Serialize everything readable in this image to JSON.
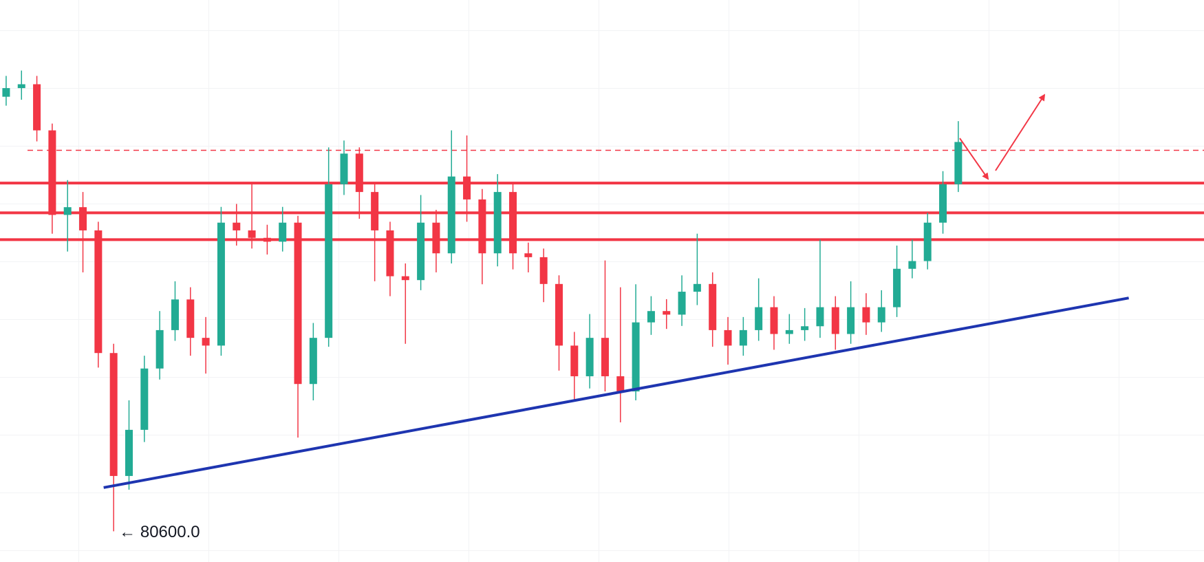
{
  "chart_data": {
    "type": "candlestick",
    "ylim": [
      79570,
      98450
    ],
    "colors": {
      "up": "#22ab94",
      "down": "#f23645"
    },
    "open": [
      95200,
      95490,
      95620,
      94070,
      91230,
      91490,
      90710,
      86590,
      82460,
      84010,
      86070,
      87360,
      88390,
      87100,
      86840,
      90970,
      90710,
      90460,
      90330,
      90970,
      85550,
      87100,
      92260,
      93290,
      92000,
      90710,
      89170,
      89040,
      90970,
      89940,
      92520,
      91750,
      89940,
      92000,
      89940,
      89810,
      88910,
      86840,
      85810,
      87100,
      85810,
      85300,
      87620,
      88000,
      87880,
      88650,
      88910,
      87360,
      86840,
      87360,
      88130,
      87230,
      87360,
      87490,
      88130,
      87230,
      88130,
      87620,
      88130,
      89420,
      89680,
      90970,
      92260
    ],
    "high": [
      95900,
      96080,
      95900,
      94300,
      92400,
      92000,
      91000,
      86900,
      85000,
      86500,
      88000,
      89000,
      88800,
      87800,
      91500,
      91600,
      92300,
      90900,
      91500,
      91200,
      87600,
      93500,
      93730,
      93500,
      92300,
      91000,
      89600,
      91900,
      91400,
      94070,
      93900,
      92100,
      92600,
      92300,
      90300,
      90100,
      89200,
      87300,
      87900,
      89700,
      88800,
      88900,
      88500,
      88400,
      89200,
      90600,
      89300,
      87800,
      87800,
      89100,
      88500,
      87900,
      88100,
      90400,
      88500,
      89000,
      88600,
      88700,
      90200,
      90400,
      91300,
      92700,
      94380
    ],
    "low": [
      94900,
      95100,
      93700,
      90600,
      90000,
      89300,
      86100,
      80600,
      82000,
      83600,
      85700,
      87000,
      86500,
      85900,
      86500,
      90200,
      90100,
      89900,
      90000,
      83750,
      85000,
      86800,
      91900,
      91100,
      89000,
      88500,
      86900,
      88700,
      89300,
      89600,
      91000,
      88900,
      89500,
      89400,
      89300,
      88300,
      86000,
      85000,
      85400,
      85300,
      84260,
      85000,
      87200,
      87400,
      87500,
      88200,
      86800,
      86200,
      86500,
      87000,
      86700,
      86900,
      87000,
      87100,
      86700,
      86900,
      87200,
      87300,
      87800,
      89100,
      89400,
      90600,
      92000
    ],
    "close": [
      95490,
      95620,
      94070,
      91230,
      91490,
      90710,
      86590,
      82460,
      84010,
      86070,
      87360,
      88390,
      87100,
      86840,
      90970,
      90710,
      90460,
      90330,
      90970,
      85550,
      87100,
      92260,
      93290,
      92000,
      90710,
      89170,
      89040,
      90970,
      89940,
      92520,
      91750,
      89940,
      92000,
      89940,
      89810,
      88910,
      86840,
      85810,
      87100,
      85810,
      85300,
      87620,
      88000,
      87880,
      88650,
      88910,
      87360,
      86840,
      87360,
      88130,
      87230,
      87360,
      87490,
      88130,
      87230,
      88130,
      87620,
      88130,
      89420,
      89680,
      90970,
      92260,
      93680
    ],
    "levels": [
      {
        "value": 93400,
        "color": "#f23645",
        "style": "dashed"
      },
      {
        "value": 92300,
        "color": "#f23645",
        "style": "solid"
      },
      {
        "value": 91300,
        "color": "#f23645",
        "style": "solid"
      },
      {
        "value": 90400,
        "color": "#f23645",
        "style": "solid"
      }
    ],
    "trendline": {
      "x": [
        6.35,
        73.1
      ],
      "y": [
        82070,
        88440
      ],
      "color": "#1e35b0"
    },
    "low_label": {
      "index": 7,
      "value": 80600,
      "label": "← 80600.0"
    }
  }
}
